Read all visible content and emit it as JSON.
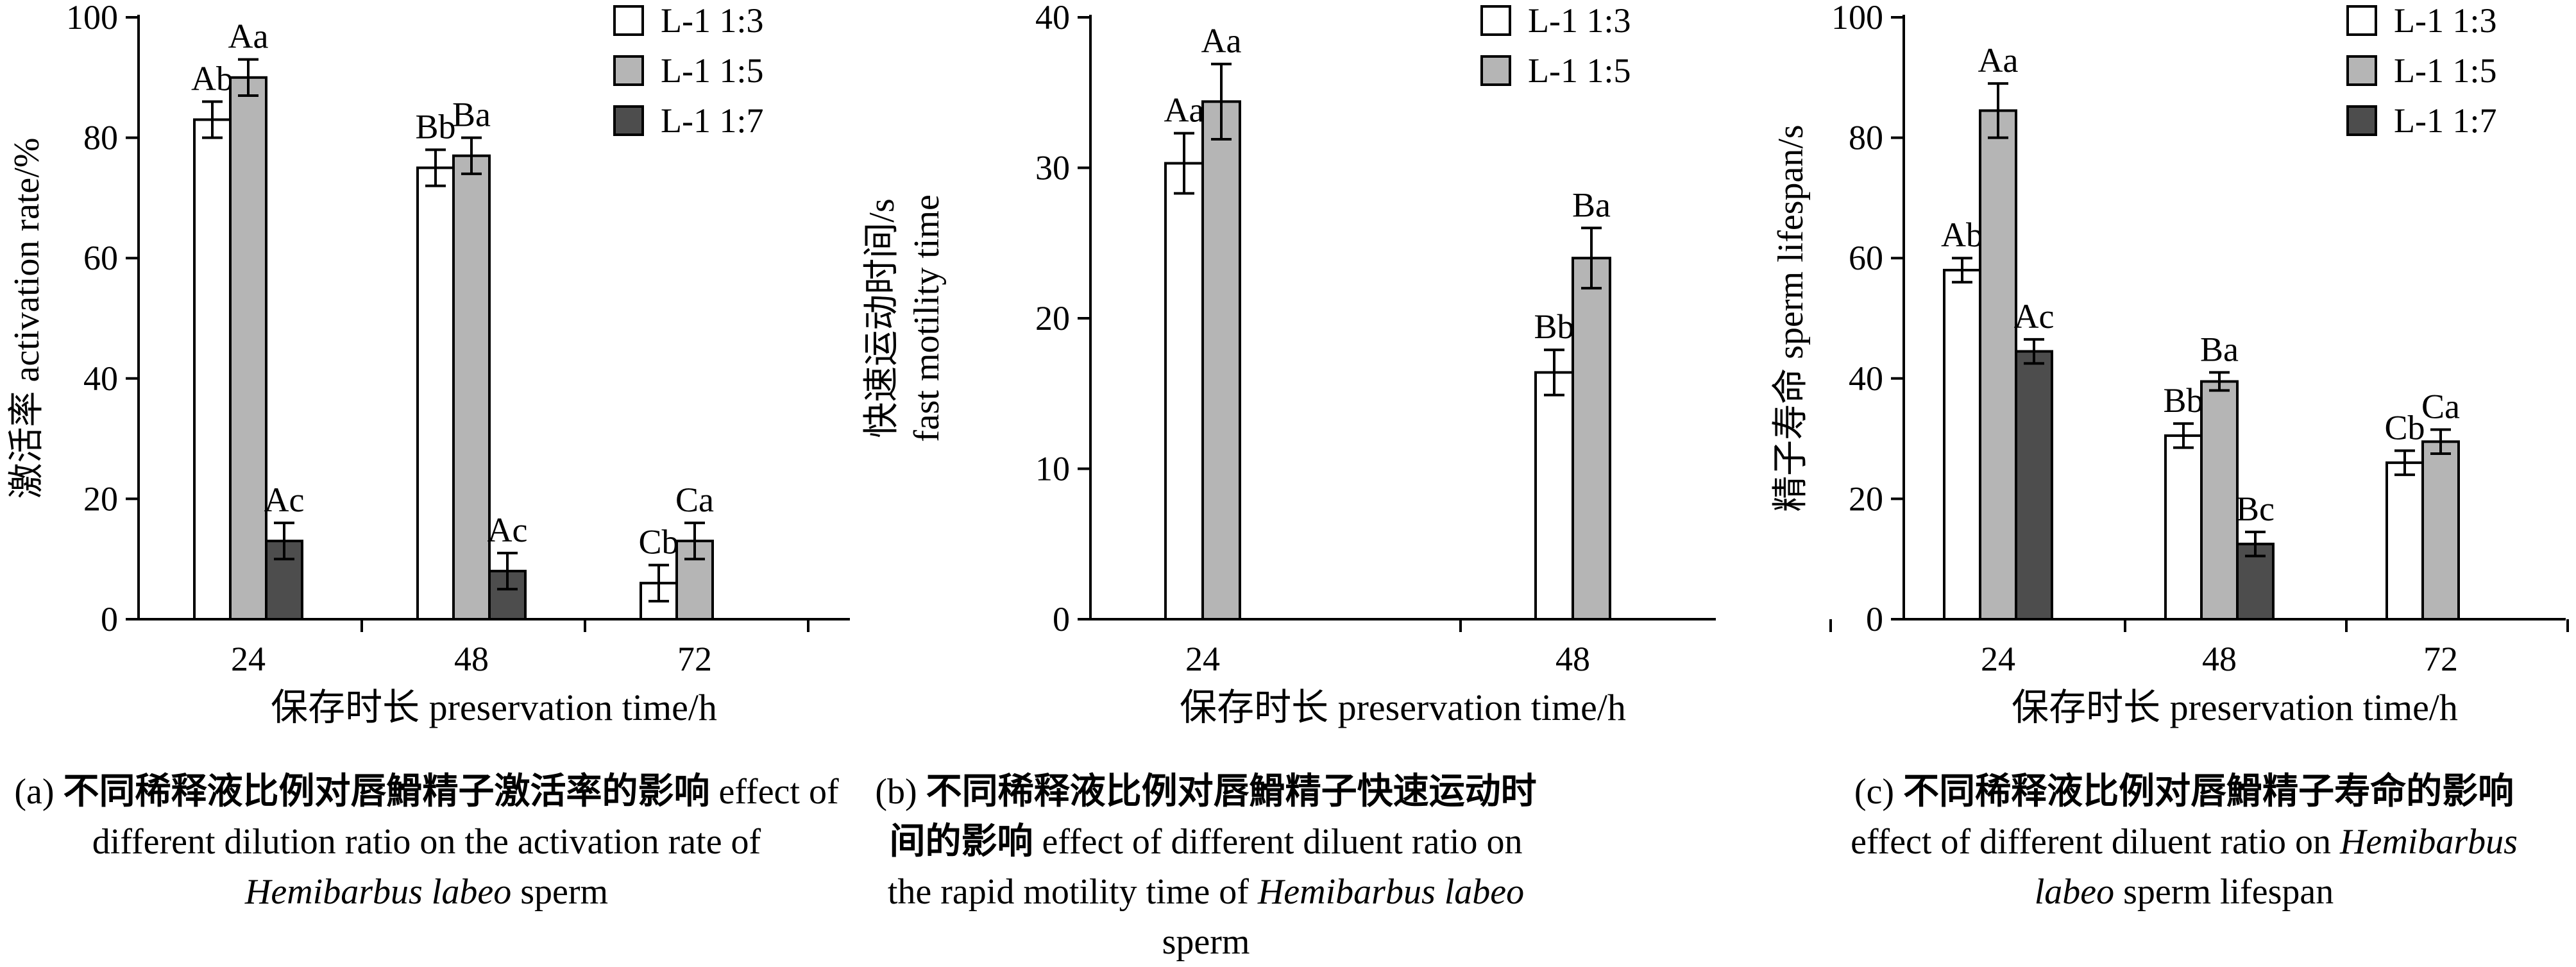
{
  "legend_labels": [
    "L-1 1:3",
    "L-1 1:5",
    "L-1 1:7"
  ],
  "series_colors": [
    "#ffffff",
    "#b5b5b5",
    "#4d4d4d"
  ],
  "chart_data": [
    {
      "type": "bar",
      "categories": [
        "24",
        "48",
        "72"
      ],
      "xlabel": "保存时长 preservation time/h",
      "ylabel": "激活率 activation rate/%",
      "ylim": [
        0,
        100
      ],
      "yticks": [
        0,
        20,
        40,
        60,
        80,
        100
      ],
      "legend_position": "top-right",
      "series": [
        {
          "name": "L-1 1:3",
          "values": [
            83,
            75,
            6
          ],
          "errors": [
            3,
            3,
            3
          ],
          "labels": [
            "Ab",
            "Bb",
            "Cb"
          ]
        },
        {
          "name": "L-1 1:5",
          "values": [
            90,
            77,
            13
          ],
          "errors": [
            3,
            3,
            3
          ],
          "labels": [
            "Aa",
            "Ba",
            "Ca"
          ]
        },
        {
          "name": "L-1 1:7",
          "values": [
            13,
            8,
            null
          ],
          "errors": [
            3,
            3,
            null
          ],
          "labels": [
            "Ac",
            "Ac",
            ""
          ]
        }
      ],
      "caption": {
        "lead": "(a)",
        "zh": "不同稀释液比例对唇䱻精子激活率的影响",
        "en_1": "effect of different dilution ratio on the activation rate of",
        "species": "Hemibarbus labeo",
        "en_2": "sperm"
      }
    },
    {
      "type": "bar",
      "categories": [
        "24",
        "48"
      ],
      "xlabel": "保存时长 preservation time/h",
      "ylabel": "快速运动时间/s",
      "ylabel_2": "fast motility time",
      "ylim": [
        0,
        40
      ],
      "yticks": [
        0,
        10,
        20,
        30,
        40
      ],
      "legend_position": "top-right",
      "series": [
        {
          "name": "L-1 1:3",
          "values": [
            30.3,
            16.4
          ],
          "errors": [
            2,
            1.5
          ],
          "labels": [
            "Aa",
            "Bb"
          ]
        },
        {
          "name": "L-1 1:5",
          "values": [
            34.4,
            24.0
          ],
          "errors": [
            2.5,
            2
          ],
          "labels": [
            "Aa",
            "Ba"
          ]
        }
      ],
      "caption": {
        "lead": "(b)",
        "zh": "不同稀释液比例对唇䱻精子快速运动时间的影响",
        "en_1": "effect of different diluent ratio on the rapid motility time of",
        "species": "Hemibarbus labeo",
        "en_2": "sperm"
      }
    },
    {
      "type": "bar",
      "categories": [
        "24",
        "48",
        "72"
      ],
      "xlabel": "保存时长 preservation time/h",
      "ylabel": "精子寿命 sperm lifespan/s",
      "ylim": [
        0,
        100
      ],
      "yticks": [
        0,
        20,
        40,
        60,
        80,
        100
      ],
      "legend_position": "top-right",
      "series": [
        {
          "name": "L-1 1:3",
          "values": [
            58,
            30.5,
            26
          ],
          "errors": [
            2,
            2,
            2
          ],
          "labels": [
            "Ab",
            "Bb",
            "Cb"
          ]
        },
        {
          "name": "L-1 1:5",
          "values": [
            84.5,
            39.5,
            29.5
          ],
          "errors": [
            4.5,
            1.5,
            2
          ],
          "labels": [
            "Aa",
            "Ba",
            "Ca"
          ]
        },
        {
          "name": "L-1 1:7",
          "values": [
            44.5,
            12.5,
            null
          ],
          "errors": [
            2,
            2,
            null
          ],
          "labels": [
            "Ac",
            "Bc",
            ""
          ]
        }
      ],
      "caption": {
        "lead": "(c)",
        "zh": "不同稀释液比例对唇䱻精子寿命的影响",
        "en_1": "effect of different diluent ratio on",
        "species": "Hemibarbus labeo",
        "en_2": "sperm lifespan"
      }
    }
  ]
}
